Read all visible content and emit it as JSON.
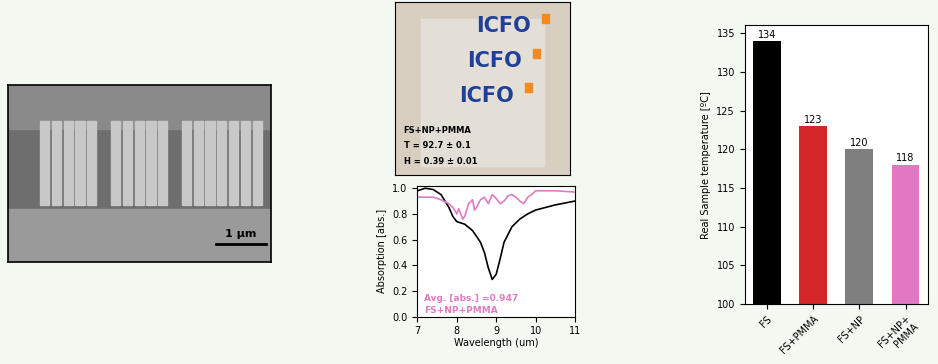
{
  "sem_image": {
    "scale_bar": "1 µm"
  },
  "photo": {
    "logos": [
      "ICFO",
      "ICFO",
      "ICFO"
    ],
    "caption": [
      "FS+NP+PMMA",
      "T = 92.7 ± 0.1",
      "H = 0.39 ± 0.01"
    ]
  },
  "chart_data": [
    {
      "type": "line",
      "xlabel": "Wavelength (um)",
      "ylabel": "Absorption [abs.]",
      "xlim": [
        7,
        11
      ],
      "ylim": [
        0.0,
        1.02
      ],
      "xticks": [
        7,
        8,
        9,
        10,
        11
      ],
      "yticks": [
        0.0,
        0.2,
        0.4,
        0.6,
        0.8,
        1.0
      ],
      "annotations": [
        "Avg. [abs.] =0.947",
        "FS+NP+PMMA"
      ],
      "series": [
        {
          "color": "#000000",
          "x": [
            7.0,
            7.2,
            7.4,
            7.6,
            7.8,
            7.9,
            8.0,
            8.2,
            8.4,
            8.6,
            8.7,
            8.8,
            8.9,
            9.0,
            9.1,
            9.2,
            9.4,
            9.6,
            9.8,
            10.0,
            10.5,
            11.0
          ],
          "values": [
            0.98,
            1.0,
            0.99,
            0.95,
            0.85,
            0.78,
            0.74,
            0.72,
            0.67,
            0.58,
            0.5,
            0.38,
            0.29,
            0.33,
            0.45,
            0.58,
            0.7,
            0.76,
            0.8,
            0.83,
            0.87,
            0.9
          ]
        },
        {
          "color": "#e07bbf",
          "x": [
            7.0,
            7.4,
            7.6,
            7.8,
            7.9,
            8.0,
            8.05,
            8.1,
            8.15,
            8.2,
            8.3,
            8.4,
            8.45,
            8.5,
            8.6,
            8.7,
            8.8,
            8.9,
            9.0,
            9.1,
            9.2,
            9.3,
            9.4,
            9.5,
            9.6,
            9.7,
            9.8,
            9.9,
            10.0,
            10.5,
            11.0
          ],
          "values": [
            0.93,
            0.93,
            0.91,
            0.88,
            0.85,
            0.8,
            0.84,
            0.8,
            0.76,
            0.78,
            0.88,
            0.91,
            0.83,
            0.85,
            0.91,
            0.93,
            0.88,
            0.95,
            0.92,
            0.88,
            0.9,
            0.94,
            0.95,
            0.93,
            0.9,
            0.88,
            0.93,
            0.95,
            0.98,
            0.98,
            0.97
          ]
        }
      ]
    },
    {
      "type": "bar",
      "ylabel": "Real Sample temperature [ºC]",
      "categories": [
        "FS",
        "FS+PMMA",
        "FS+NP",
        "FS+NP+\nPMMA"
      ],
      "values": [
        134,
        123,
        120,
        118
      ],
      "colors": [
        "#000000",
        "#d62728",
        "#7f7f7f",
        "#e377c2"
      ],
      "ylim": [
        100,
        136
      ],
      "yticks": [
        100,
        105,
        110,
        115,
        120,
        125,
        130,
        135
      ],
      "data_labels": true
    }
  ]
}
